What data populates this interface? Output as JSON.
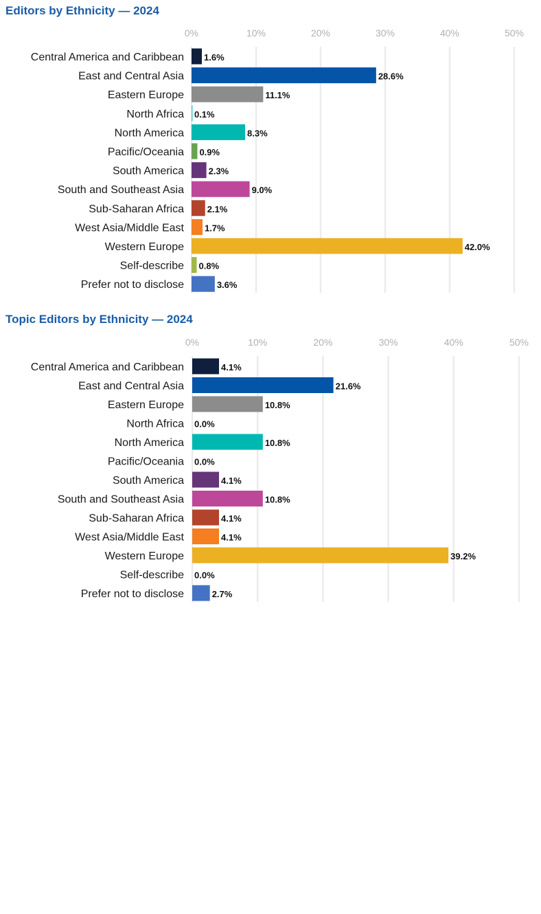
{
  "charts": [
    {
      "title": "Editors by Ethnicity — 2024",
      "chart_data": {
        "type": "bar",
        "orientation": "horizontal",
        "title": "Editors by Ethnicity — 2024",
        "xlabel": "",
        "ylabel": "",
        "xlim": [
          0,
          50
        ],
        "ticks": [
          "0%",
          "10%",
          "20%",
          "30%",
          "40%",
          "50%"
        ],
        "tick_values": [
          0,
          10,
          20,
          30,
          40,
          50
        ],
        "grid": true,
        "categories": [
          "Central America and Caribbean",
          "East and Central Asia",
          "Eastern Europe",
          "North Africa",
          "North America",
          "Pacific/Oceania",
          "South America",
          "South and Southeast Asia",
          "Sub-Saharan Africa",
          "West Asia/Middle East",
          "Western Europe",
          "Self-describe",
          "Prefer not to disclose"
        ],
        "values": [
          1.6,
          28.6,
          11.1,
          0.1,
          8.3,
          0.9,
          2.3,
          9.0,
          2.1,
          1.7,
          42.0,
          0.8,
          3.6
        ],
        "value_labels": [
          "1.6%",
          "28.6%",
          "11.1%",
          "0.1%",
          "8.3%",
          "0.9%",
          "2.3%",
          "9.0%",
          "2.1%",
          "1.7%",
          "42.0%",
          "0.8%",
          "3.6%"
        ],
        "colors": [
          "#0f1f3d",
          "#0454a8",
          "#8c8c8c",
          "#57c7c9",
          "#00b8b0",
          "#6aa153",
          "#663478",
          "#bd4899",
          "#b4432c",
          "#f47e20",
          "#ecb023",
          "#a1b84a",
          "#4573c4"
        ]
      }
    },
    {
      "title": "Topic Editors by Ethnicity — 2024",
      "chart_data": {
        "type": "bar",
        "orientation": "horizontal",
        "title": "Topic Editors by Ethnicity — 2024",
        "xlabel": "",
        "ylabel": "",
        "xlim": [
          0,
          50
        ],
        "ticks": [
          "0%",
          "10%",
          "20%",
          "30%",
          "40%",
          "50%"
        ],
        "tick_values": [
          0,
          10,
          20,
          30,
          40,
          50
        ],
        "grid": true,
        "categories": [
          "Central America and Caribbean",
          "East and Central Asia",
          "Eastern Europe",
          "North Africa",
          "North America",
          "Pacific/Oceania",
          "South America",
          "South and Southeast Asia",
          "Sub-Saharan Africa",
          "West Asia/Middle East",
          "Western Europe",
          "Self-describe",
          "Prefer not to disclose"
        ],
        "values": [
          4.1,
          21.6,
          10.8,
          0.0,
          10.8,
          0.0,
          4.1,
          10.8,
          4.1,
          4.1,
          39.2,
          0.0,
          2.7
        ],
        "value_labels": [
          "4.1%",
          "21.6%",
          "10.8%",
          "0.0%",
          "10.8%",
          "0.0%",
          "4.1%",
          "10.8%",
          "4.1%",
          "4.1%",
          "39.2%",
          "0.0%",
          "2.7%"
        ],
        "colors": [
          "#0f1f3d",
          "#0454a8",
          "#8c8c8c",
          "#57c7c9",
          "#00b8b0",
          "#6aa153",
          "#663478",
          "#bd4899",
          "#b4432c",
          "#f47e20",
          "#ecb023",
          "#a1b84a",
          "#4573c4"
        ]
      }
    }
  ]
}
